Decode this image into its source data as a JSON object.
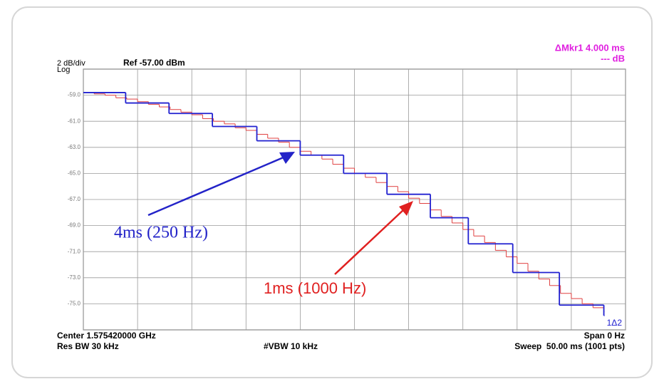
{
  "chart_data": {
    "type": "step",
    "scale_label": "2 dB/div",
    "scale_type": "Log",
    "ref_label": "Ref -57.00 dBm",
    "marker_label": "ΔMkr1 4.000 ms",
    "marker_value": "--- dB",
    "center_label": "Center 1.575420000 GHz",
    "span_label": "Span 0 Hz",
    "rbw_label": "Res BW 30 kHz",
    "vbw_label": "#VBW 10 kHz",
    "sweep_label": "Sweep  50.00 ms (1001 pts)",
    "marker_tag": "1Δ2",
    "annotations": [
      {
        "text": "4ms (250 Hz)",
        "color": "#2323c8"
      },
      {
        "text": "1ms (1000 Hz)",
        "color": "#e02020"
      }
    ],
    "xlim": [
      0,
      50
    ],
    "xticks": [
      0,
      5,
      10,
      15,
      20,
      25,
      30,
      35,
      40,
      45,
      50
    ],
    "ylim": [
      -77,
      -57
    ],
    "yticks": [
      {
        "value": -59,
        "label": "-59.0"
      },
      {
        "value": -61,
        "label": "-61.0"
      },
      {
        "value": -63,
        "label": "-63.0"
      },
      {
        "value": -65,
        "label": "-65.0"
      },
      {
        "value": -67,
        "label": "-67.0"
      },
      {
        "value": -69,
        "label": "-69.0"
      },
      {
        "value": -71,
        "label": "-71.0"
      },
      {
        "value": -73,
        "label": "-73.0"
      },
      {
        "value": -75,
        "label": "-75.0"
      }
    ],
    "grid": true,
    "series": [
      {
        "color": "#e04040",
        "x": [
          0,
          1,
          2,
          3,
          4,
          5,
          6,
          7,
          8,
          9,
          10,
          11,
          12,
          13,
          14,
          15,
          16,
          17,
          18,
          19,
          20,
          21,
          22,
          23,
          24,
          25,
          26,
          27,
          28,
          29,
          30,
          31,
          32,
          33,
          34,
          35,
          36,
          37,
          38,
          39,
          40,
          41,
          42,
          43,
          44,
          45,
          46,
          47,
          48
        ],
        "values": [
          -58.8,
          -58.9,
          -59.0,
          -59.2,
          -59.3,
          -59.5,
          -59.7,
          -59.9,
          -60.1,
          -60.3,
          -60.5,
          -60.8,
          -61.0,
          -61.2,
          -61.5,
          -61.7,
          -62.0,
          -62.3,
          -62.6,
          -63.0,
          -63.3,
          -63.6,
          -63.9,
          -64.3,
          -64.6,
          -65.0,
          -65.3,
          -65.7,
          -66.0,
          -66.4,
          -66.9,
          -67.3,
          -67.8,
          -68.3,
          -68.8,
          -69.3,
          -69.8,
          -70.3,
          -70.9,
          -71.4,
          -71.9,
          -72.5,
          -73.1,
          -73.6,
          -74.2,
          -74.6,
          -75.0,
          -75.3,
          -75.6
        ]
      },
      {
        "color": "#2020d0",
        "x": [
          0,
          3.9,
          7.9,
          11.9,
          16,
          20,
          24,
          28,
          32,
          35.5,
          39.6,
          43.9,
          48
        ],
        "values": [
          -58.8,
          -59.6,
          -60.4,
          -61.4,
          -62.5,
          -63.6,
          -65.0,
          -66.6,
          -68.4,
          -70.4,
          -72.6,
          -75.1,
          -75.9
        ]
      }
    ]
  }
}
